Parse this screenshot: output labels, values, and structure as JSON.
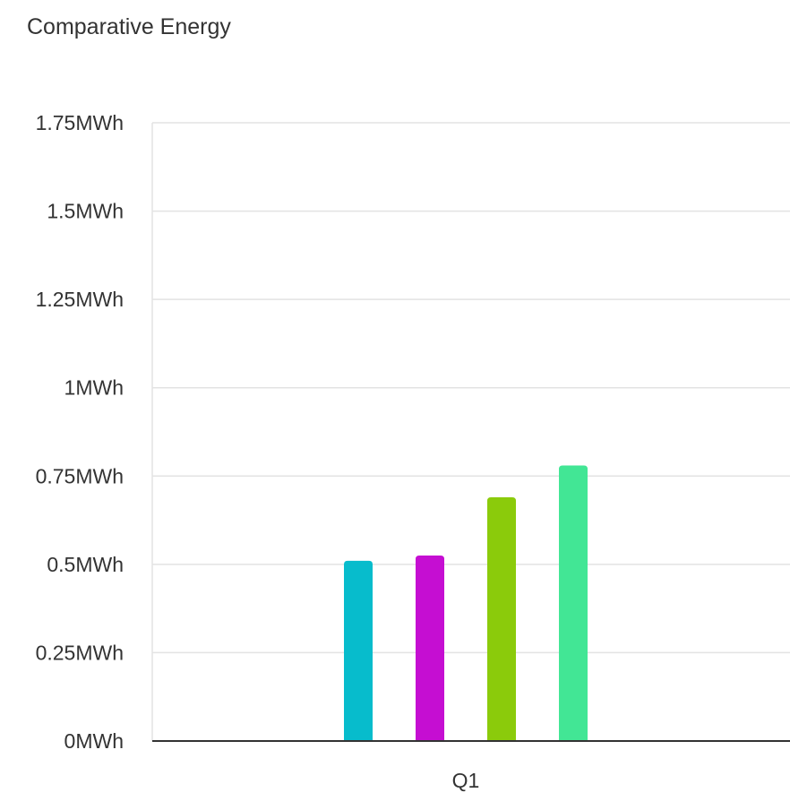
{
  "chart_data": {
    "type": "bar",
    "title": "Comparative Energy",
    "xlabel": "",
    "ylabel": "",
    "categories": [
      "Q1"
    ],
    "series": [
      {
        "values": [
          0.51
        ],
        "color": "#07bccc"
      },
      {
        "values": [
          0.525
        ],
        "color": "#c50ed2"
      },
      {
        "values": [
          0.69
        ],
        "color": "#8bcb0b"
      },
      {
        "values": [
          0.78
        ],
        "color": "#42e695"
      }
    ],
    "ylim": [
      0,
      1.75
    ],
    "yticks": [
      0,
      0.25,
      0.5,
      0.75,
      1,
      1.25,
      1.5,
      1.75
    ],
    "ytick_labels": [
      "0MWh",
      "0.25MWh",
      "0.5MWh",
      "0.75MWh",
      "1MWh",
      "1.25MWh",
      "1.5MWh",
      "1.75MWh"
    ],
    "grid": true,
    "legend": "none"
  }
}
